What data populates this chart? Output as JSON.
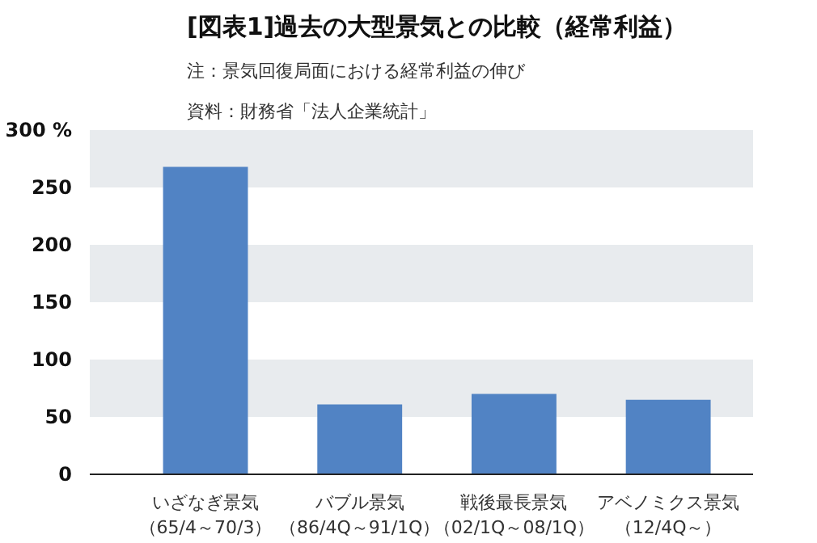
{
  "chart_data": {
    "type": "bar",
    "title": "[図表1]過去の大型景気との比較（経常利益）",
    "annotations": [
      "注：景気回復局面における経常利益の伸び",
      "資料：財務省「法人企業統計」"
    ],
    "categories": [
      "いざなぎ景気（65/4～70/3）",
      "バブル景気（86/4Q～91/1Q）",
      "戦後最長景気（02/1Q～08/1Q）",
      "アベノミクス景気（12/4Q～）"
    ],
    "values": [
      268,
      61,
      70,
      65
    ],
    "color": "#5183c4",
    "ylim": [
      0,
      300
    ],
    "yticks": [
      0,
      50,
      100,
      150,
      200,
      250,
      {
        "value": 300,
        "label": "300 %"
      }
    ],
    "bands": [
      {
        "axis": "y",
        "from": 50,
        "to": 100,
        "color": "#e8ebee"
      },
      {
        "axis": "y",
        "from": 150,
        "to": 200,
        "color": "#e8ebee"
      },
      {
        "axis": "y",
        "from": 250,
        "to": 300,
        "color": "#e8ebee"
      }
    ],
    "grid": false
  }
}
